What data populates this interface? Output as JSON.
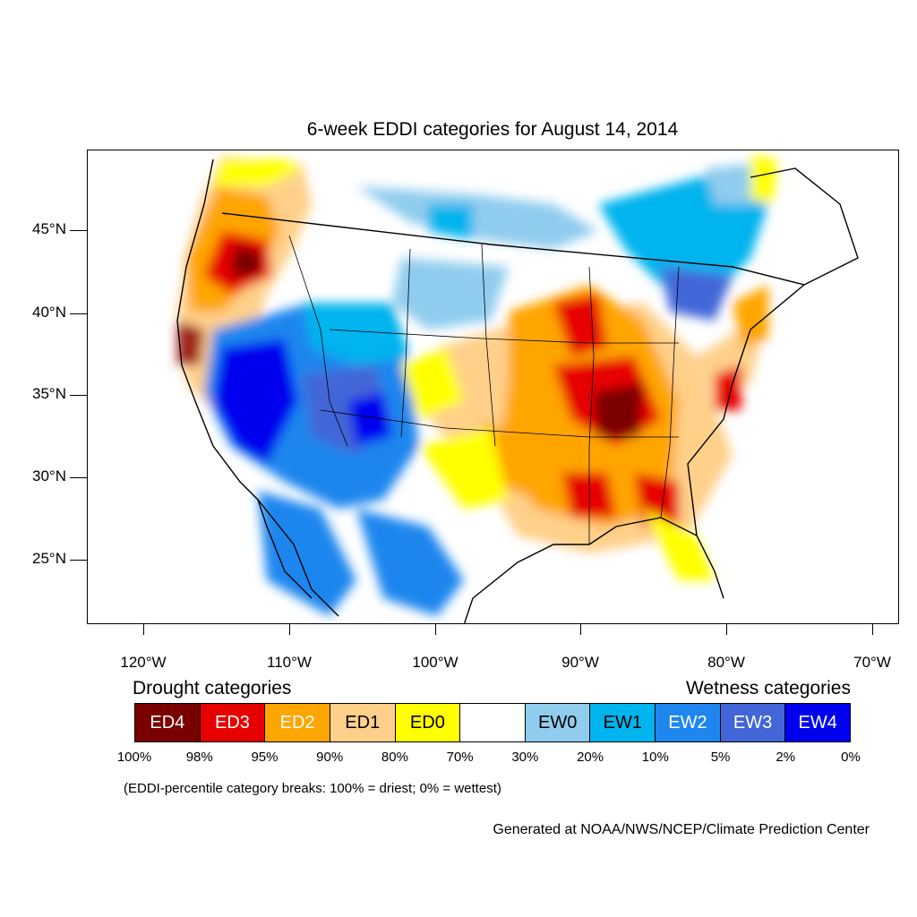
{
  "title": "6-week EDDI categories for August 14, 2014",
  "y_axis_labels": [
    "45°N",
    "40°N",
    "35°N",
    "30°N",
    "25°N"
  ],
  "x_axis_labels": [
    "120°W",
    "110°W",
    "100°W",
    "90°W",
    "80°W",
    "70°W"
  ],
  "legend": {
    "drought_heading": "Drought categories",
    "wetness_heading": "Wetness categories",
    "categories": [
      {
        "label": "ED4",
        "color": "#7a0000",
        "text_color": "#ffffff"
      },
      {
        "label": "ED3",
        "color": "#e60000",
        "text_color": "#ffffff"
      },
      {
        "label": "ED2",
        "color": "#ffa500",
        "text_color": "#ffffff"
      },
      {
        "label": "ED1",
        "color": "#ffd08a",
        "text_color": "#000000"
      },
      {
        "label": "ED0",
        "color": "#ffff00",
        "text_color": "#000000"
      },
      {
        "label": "",
        "color": "#ffffff",
        "text_color": "#000000"
      },
      {
        "label": "EW0",
        "color": "#90ccee",
        "text_color": "#000000"
      },
      {
        "label": "EW1",
        "color": "#00b4ee",
        "text_color": "#000000"
      },
      {
        "label": "EW2",
        "color": "#1e86ee",
        "text_color": "#ffffff"
      },
      {
        "label": "EW3",
        "color": "#4266d8",
        "text_color": "#ffffff"
      },
      {
        "label": "EW4",
        "color": "#0000ee",
        "text_color": "#ffffff"
      }
    ],
    "breaks": [
      "100%",
      "98%",
      "95%",
      "90%",
      "80%",
      "70%",
      "30%",
      "20%",
      "10%",
      "5%",
      "2%",
      "0%"
    ]
  },
  "note": "(EDDI-percentile category breaks: 100% = driest; 0% = wettest)",
  "credit": "Generated at NOAA/NWS/NCEP/Climate Prediction Center"
}
